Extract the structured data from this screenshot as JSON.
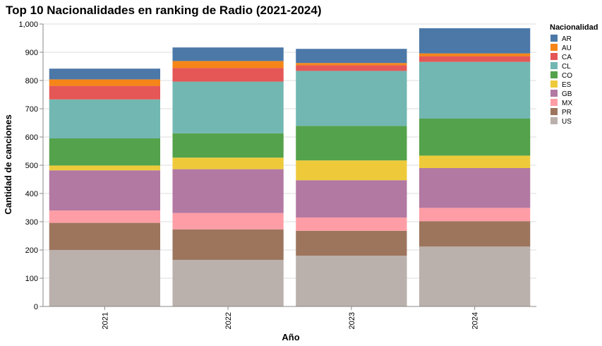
{
  "chart_data": {
    "type": "bar",
    "stacked": true,
    "title": "Top 10 Nacionalidades en ranking de Radio (2021-2024)",
    "xlabel": "Año",
    "ylabel": "Cantidad de canciones",
    "ylim": [
      0,
      1000
    ],
    "yticks": [
      0,
      100,
      200,
      300,
      400,
      500,
      600,
      700,
      800,
      900,
      1000
    ],
    "ytick_labels": [
      "0",
      "100",
      "200",
      "300",
      "400",
      "500",
      "600",
      "700",
      "800",
      "900",
      "1,000"
    ],
    "grid": true,
    "legend": {
      "title": "Nacionalidad",
      "placement": "right"
    },
    "categories": [
      "2021",
      "2022",
      "2023",
      "2024"
    ],
    "series": [
      {
        "name": "US",
        "color": "#bab0ac",
        "values": [
          200,
          165,
          180,
          212
        ]
      },
      {
        "name": "PR",
        "color": "#9d755d",
        "values": [
          96,
          108,
          88,
          90
        ]
      },
      {
        "name": "MX",
        "color": "#ff9da6",
        "values": [
          44,
          58,
          47,
          47
        ]
      },
      {
        "name": "GB",
        "color": "#b279a2",
        "values": [
          142,
          155,
          132,
          141
        ]
      },
      {
        "name": "ES",
        "color": "#eeca3b",
        "values": [
          17,
          41,
          70,
          44
        ]
      },
      {
        "name": "CO",
        "color": "#54a24b",
        "values": [
          96,
          86,
          122,
          131
        ]
      },
      {
        "name": "CL",
        "color": "#72b7b2",
        "values": [
          138,
          183,
          195,
          201
        ]
      },
      {
        "name": "CA",
        "color": "#e45756",
        "values": [
          48,
          48,
          20,
          20
        ]
      },
      {
        "name": "AU",
        "color": "#f58518",
        "values": [
          23,
          25,
          8,
          10
        ]
      },
      {
        "name": "AR",
        "color": "#4c78a8",
        "values": [
          38,
          48,
          50,
          89
        ]
      }
    ],
    "legend_order": [
      "AR",
      "AU",
      "CA",
      "CL",
      "CO",
      "ES",
      "GB",
      "MX",
      "PR",
      "US"
    ]
  }
}
